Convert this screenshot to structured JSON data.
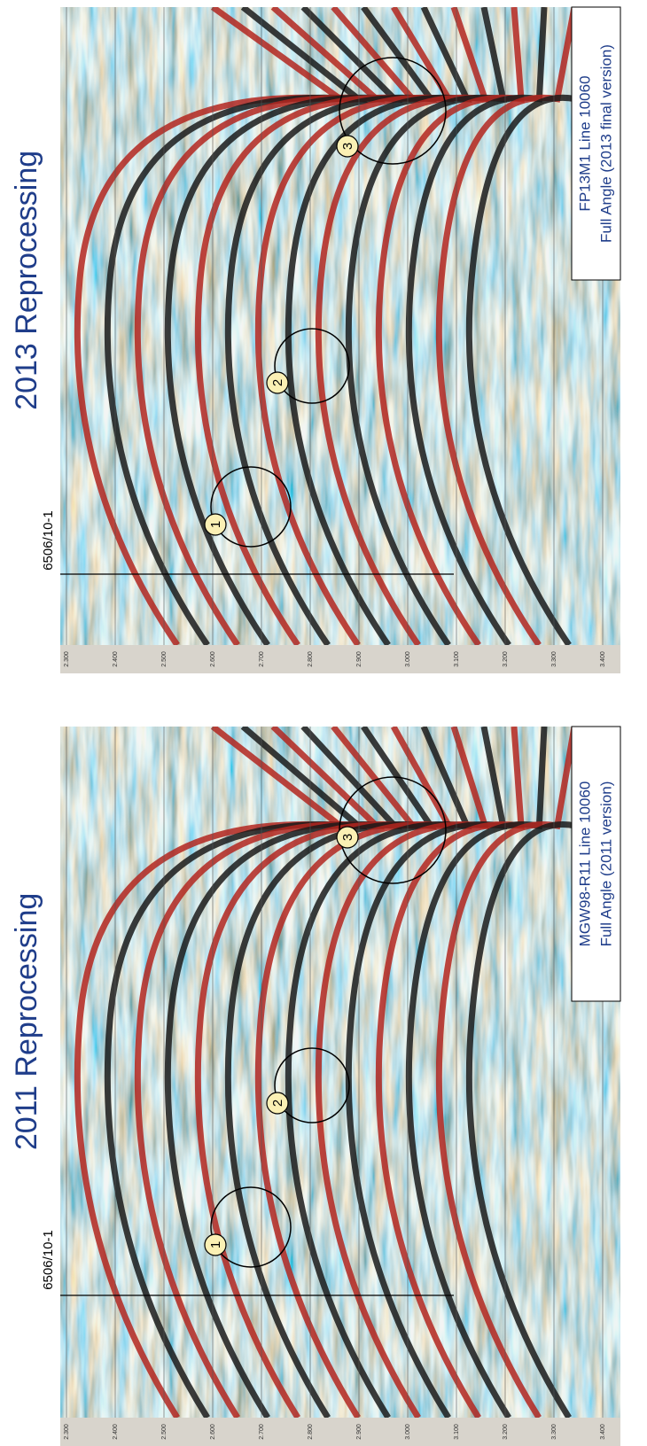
{
  "panels": [
    {
      "title": "2011 Reprocessing",
      "well": "6506/10-1",
      "info_line1": "MGW98-R11 Line 10060",
      "info_line2": "Full Angle (2011 version)",
      "markers": [
        "1",
        "2",
        "3"
      ]
    },
    {
      "title": "2013 Reprocessing",
      "well": "6506/10-1",
      "info_line1": "FP13M1 Line 10060",
      "info_line2": "Full Angle (2013 final version)",
      "markers": [
        "1",
        "2",
        "3"
      ]
    }
  ],
  "time_ticks": [
    "2.300",
    "2.400",
    "2.500",
    "2.600",
    "2.700",
    "2.800",
    "2.900",
    "3.000",
    "3.100",
    "3.200",
    "3.300",
    "3.400"
  ]
}
